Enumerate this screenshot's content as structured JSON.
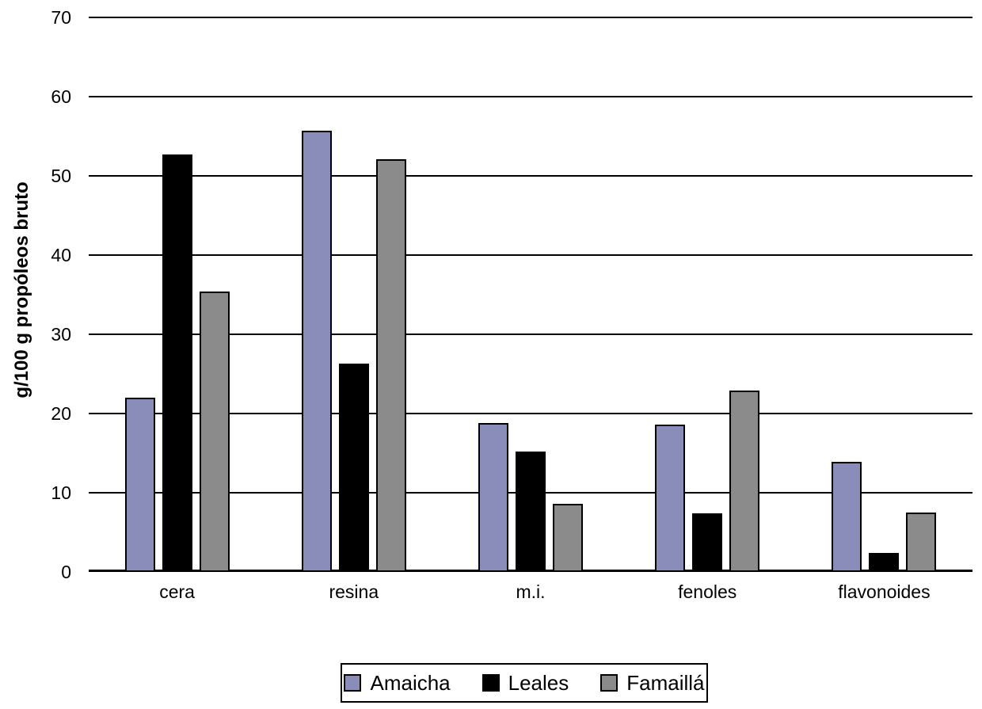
{
  "chart_data": {
    "type": "bar",
    "title": "",
    "categories": [
      "cera",
      "resina",
      "m.i.",
      "fenoles",
      "flavonoides"
    ],
    "series": [
      {
        "name": "Amaicha",
        "color": "#8A8CBA",
        "values": [
          22.0,
          55.7,
          18.8,
          18.6,
          13.9
        ]
      },
      {
        "name": "Leales",
        "color": "#000000",
        "values": [
          52.7,
          26.3,
          15.2,
          7.4,
          2.4
        ]
      },
      {
        "name": "Famaillá",
        "color": "#8B8B8B",
        "values": [
          35.4,
          52.1,
          8.6,
          22.9,
          7.5
        ]
      }
    ],
    "xlabel": "",
    "ylabel": "g/100 g propóleos bruto",
    "ylim": [
      0,
      70
    ],
    "yticks": [
      0,
      10,
      20,
      30,
      40,
      50,
      60,
      70
    ],
    "grid": true,
    "gridline_color": "#000000",
    "bar_border_color": "#000000",
    "background_color": "#FFFFFF",
    "legend_position": "bottom",
    "legend_border_color": "#000000"
  }
}
